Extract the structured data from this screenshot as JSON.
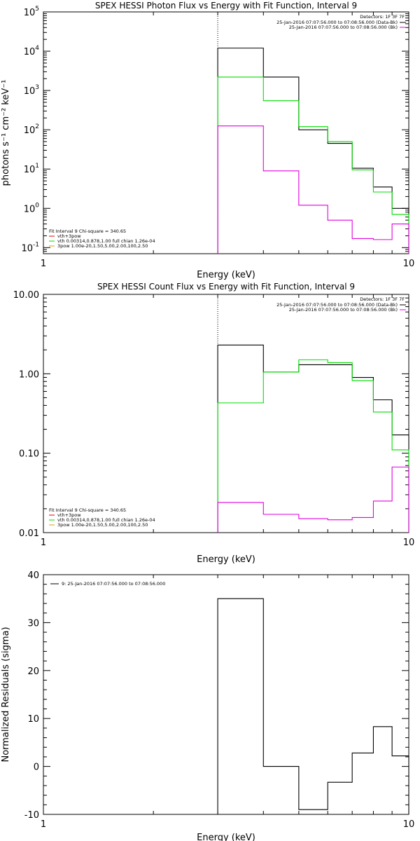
{
  "chart_data": [
    {
      "type": "line",
      "title": "SPEX HESSI Photon Flux vs Energy with Fit Function, Interval 9",
      "xlabel": "Energy (keV)",
      "ylabel": "photons s⁻¹ cm⁻² keV⁻¹",
      "xscale": "log",
      "yscale": "log",
      "xlim": [
        1,
        10
      ],
      "ylim": [
        0.07,
        100000
      ],
      "x_ticks": [
        "1",
        "10"
      ],
      "y_ticks": [
        {
          "value": 100000,
          "base": "10",
          "exp": "5"
        },
        {
          "value": 10000,
          "base": "10",
          "exp": "4"
        },
        {
          "value": 1000,
          "base": "10",
          "exp": "3"
        },
        {
          "value": 100,
          "base": "10",
          "exp": "2"
        },
        {
          "value": 10,
          "base": "10",
          "exp": "1"
        },
        {
          "value": 1,
          "base": "10",
          "exp": "0"
        },
        {
          "value": 0.1,
          "base": "10",
          "exp": "-1"
        }
      ],
      "vline_x": 3.0,
      "detectors": "Detectors: 1F 3F 7F",
      "legend_top": [
        {
          "label": "25-Jan-2016 07:07:56.000 to 07:08:56.000 (Data-Bk)",
          "color": "#000000"
        },
        {
          "label": "25-Jan-2016 07:07:56.000 to 07:08:56.000 (Bk)",
          "color": "#e000e0"
        }
      ],
      "fit_header": "Fit Interval 9   Chi-square = 340.65",
      "legend_fit": [
        {
          "label": "vth+3pow",
          "color": "#e00000"
        },
        {
          "label": "vth 0.00314,0.878,1.00  full chian 1.26e-04",
          "color": "#00dd00"
        },
        {
          "label": "3pow 1.00e-20,1.50,5.00,2.00,100,2.50",
          "color": "#d8a000"
        }
      ],
      "edges": [
        3.0,
        4.0,
        5.0,
        6.0,
        7.0,
        8.0,
        9.0,
        10.0
      ],
      "series": [
        {
          "color": "#000000",
          "values": [
            12000,
            2200,
            100,
            45,
            10.5,
            3.5,
            1.0
          ]
        },
        {
          "color": "#00dd00",
          "values": [
            2200,
            550,
            120,
            50,
            9.5,
            2.6,
            0.7
          ]
        },
        {
          "color": "#e000e0",
          "values": [
            125,
            9,
            1.2,
            0.5,
            0.17,
            0.16,
            0.4
          ]
        }
      ]
    },
    {
      "type": "line",
      "title": "SPEX HESSI Count Flux vs Energy with Fit Function, Interval 9",
      "xlabel": "Energy (keV)",
      "ylabel": "",
      "xscale": "log",
      "yscale": "log",
      "xlim": [
        1,
        10
      ],
      "ylim": [
        0.01,
        10
      ],
      "x_ticks": [
        "1",
        "10"
      ],
      "y_ticks": [
        {
          "value": 10,
          "label": "10.00"
        },
        {
          "value": 1,
          "label": "1.00"
        },
        {
          "value": 0.1,
          "label": "0.10"
        },
        {
          "value": 0.01,
          "label": "0.01"
        }
      ],
      "vline_x": 3.0,
      "detectors": "Detectors: 1F 3F 7F",
      "legend_top": [
        {
          "label": "25-Jan-2016 07:07:56.000 to 07:08:56.000 (Data-Bk)",
          "color": "#000000"
        },
        {
          "label": "25-Jan-2016 07:07:56.000 to 07:08:56.000 (Bk)",
          "color": "#e000e0"
        }
      ],
      "fit_header": "Fit Interval 9   Chi-square = 340.65",
      "legend_fit": [
        {
          "label": "vth+3pow",
          "color": "#e00000"
        },
        {
          "label": "vth 0.00314,0.878,1.00  full chian 1.26e-04",
          "color": "#00dd00"
        },
        {
          "label": "3pow 1.00e-20,1.50,5.00,2.00,100,2.50",
          "color": "#d8a000"
        }
      ],
      "edges": [
        3.0,
        4.0,
        5.0,
        6.0,
        7.0,
        8.0,
        9.0,
        10.0
      ],
      "series": [
        {
          "color": "#000000",
          "values": [
            2.3,
            1.05,
            1.3,
            1.3,
            0.9,
            0.47,
            0.17
          ]
        },
        {
          "color": "#00dd00",
          "values": [
            0.43,
            1.05,
            1.5,
            1.38,
            0.82,
            0.33,
            0.11
          ]
        },
        {
          "color": "#e000e0",
          "values": [
            0.024,
            0.017,
            0.015,
            0.0145,
            0.0155,
            0.025,
            0.067
          ]
        }
      ]
    },
    {
      "type": "line",
      "title": "",
      "xlabel": "Energy (keV)",
      "ylabel": "Normalized Residuals (sigma)",
      "xscale": "log",
      "yscale": "linear",
      "xlim": [
        1,
        10
      ],
      "ylim": [
        -10,
        40
      ],
      "x_ticks": [
        "1",
        "10"
      ],
      "y_ticks": [
        {
          "value": 40,
          "label": "40"
        },
        {
          "value": 30,
          "label": "30"
        },
        {
          "value": 20,
          "label": "20"
        },
        {
          "value": 10,
          "label": "10"
        },
        {
          "value": 0,
          "label": "0"
        },
        {
          "value": -10,
          "label": "-10"
        }
      ],
      "legend_top": [
        {
          "label": "9: 25-Jan-2016 07:07:56.000 to 07:08:56.000",
          "color": "#000000"
        }
      ],
      "edges": [
        3.0,
        4.0,
        5.0,
        6.0,
        7.0,
        8.0,
        9.0,
        10.0
      ],
      "series": [
        {
          "color": "#000000",
          "values": [
            35,
            0,
            -9,
            -3.3,
            2.8,
            8.3,
            2.2
          ]
        }
      ]
    }
  ]
}
